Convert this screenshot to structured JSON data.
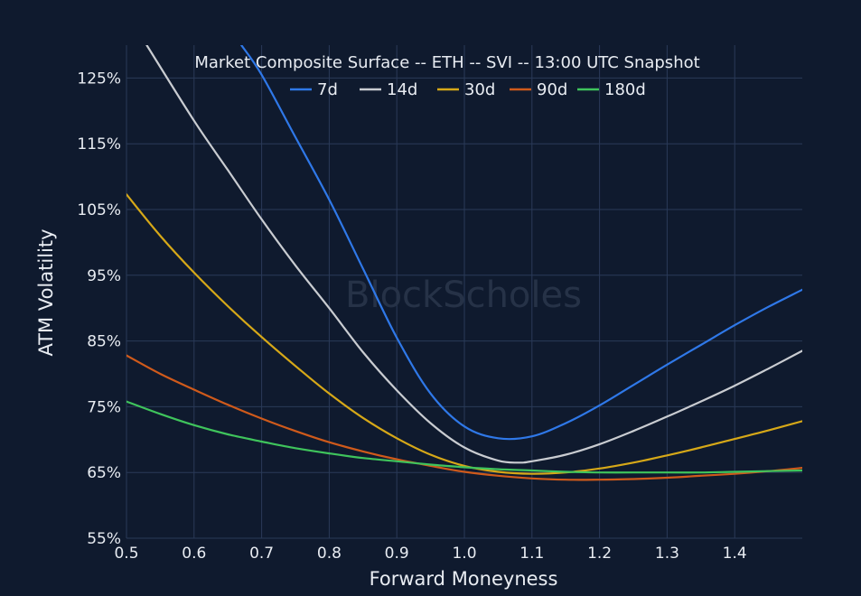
{
  "chart_data": {
    "type": "line",
    "title": "Market Composite Surface -- ETH -- SVI -- 13:00 UTC Snapshot",
    "xlabel": "Forward Moneyness",
    "ylabel": "ATM Volatility",
    "watermark": "BlockScholes",
    "xlim": [
      0.5,
      1.5
    ],
    "ylim": [
      55,
      130
    ],
    "x_ticks": [
      0.5,
      0.6,
      0.7,
      0.8,
      0.9,
      1.0,
      1.1,
      1.2,
      1.3,
      1.4
    ],
    "x_tick_labels": [
      "0.5",
      "0.6",
      "0.7",
      "0.8",
      "0.9",
      "1.0",
      "1.1",
      "1.2",
      "1.3",
      "1.4"
    ],
    "y_ticks": [
      55,
      65,
      75,
      85,
      95,
      105,
      115,
      125
    ],
    "y_tick_labels": [
      "55%",
      "65%",
      "75%",
      "85%",
      "95%",
      "105%",
      "115%",
      "125%"
    ],
    "grid": true,
    "legend_position": "top-center",
    "series": [
      {
        "name": "7d",
        "color": "#2f78e8",
        "x": [
          0.67,
          0.7,
          0.75,
          0.8,
          0.85,
          0.9,
          0.95,
          1.0,
          1.05,
          1.1,
          1.15,
          1.2,
          1.25,
          1.3,
          1.35,
          1.4,
          1.45,
          1.5
        ],
        "y": [
          130,
          125.5,
          116,
          106.5,
          96,
          85.5,
          77,
          72,
          70.2,
          70.5,
          72.5,
          75.2,
          78.3,
          81.4,
          84.4,
          87.4,
          90.2,
          92.8
        ]
      },
      {
        "name": "14d",
        "color": "#c9ccd1",
        "x": [
          0.53,
          0.6,
          0.65,
          0.7,
          0.75,
          0.8,
          0.85,
          0.9,
          0.95,
          1.0,
          1.05,
          1.08,
          1.1,
          1.15,
          1.2,
          1.25,
          1.3,
          1.35,
          1.4,
          1.45,
          1.5
        ],
        "y": [
          130,
          118.5,
          111,
          103.5,
          96.5,
          90,
          83.3,
          77.5,
          72.5,
          68.8,
          66.8,
          66.5,
          66.7,
          67.7,
          69.3,
          71.3,
          73.5,
          75.8,
          78.2,
          80.8,
          83.5
        ]
      },
      {
        "name": "30d",
        "color": "#d6a818",
        "x": [
          0.5,
          0.55,
          0.6,
          0.65,
          0.7,
          0.75,
          0.8,
          0.85,
          0.9,
          0.95,
          1.0,
          1.05,
          1.1,
          1.15,
          1.2,
          1.25,
          1.3,
          1.35,
          1.4,
          1.45,
          1.5
        ],
        "y": [
          107.3,
          101,
          95.4,
          90.3,
          85.6,
          81.2,
          77,
          73.3,
          70.2,
          67.7,
          66,
          65.1,
          64.8,
          65,
          65.6,
          66.5,
          67.6,
          68.8,
          70.1,
          71.4,
          72.8
        ]
      },
      {
        "name": "90d",
        "color": "#cf5a1b",
        "x": [
          0.5,
          0.55,
          0.6,
          0.65,
          0.7,
          0.75,
          0.8,
          0.85,
          0.9,
          0.95,
          1.0,
          1.05,
          1.1,
          1.15,
          1.2,
          1.25,
          1.3,
          1.35,
          1.4,
          1.45,
          1.5
        ],
        "y": [
          82.8,
          80,
          77.6,
          75.3,
          73.2,
          71.3,
          69.6,
          68.2,
          67,
          66,
          65.1,
          64.5,
          64.1,
          63.9,
          63.9,
          64,
          64.2,
          64.5,
          64.8,
          65.2,
          65.7
        ]
      },
      {
        "name": "180d",
        "color": "#3fc45c",
        "x": [
          0.5,
          0.55,
          0.6,
          0.65,
          0.7,
          0.75,
          0.8,
          0.85,
          0.9,
          0.95,
          1.0,
          1.05,
          1.1,
          1.15,
          1.2,
          1.25,
          1.3,
          1.35,
          1.4,
          1.45,
          1.5
        ],
        "y": [
          75.8,
          73.9,
          72.2,
          70.8,
          69.7,
          68.7,
          67.9,
          67.2,
          66.7,
          66.2,
          65.8,
          65.5,
          65.3,
          65.1,
          65,
          65,
          65,
          65,
          65.1,
          65.2,
          65.3
        ]
      }
    ]
  }
}
